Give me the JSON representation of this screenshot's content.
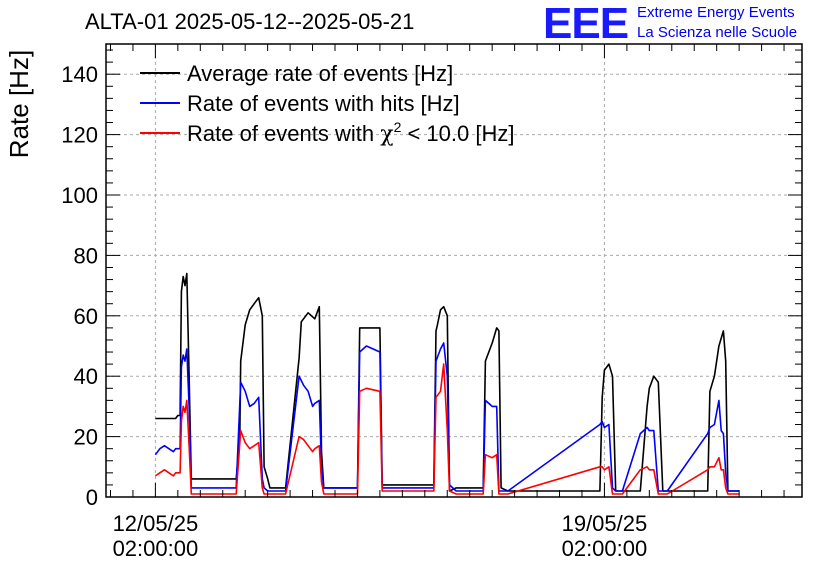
{
  "logo": {
    "letters": "EEE",
    "line1": "Extreme Energy Events",
    "line2": "La Scienza nelle Scuole"
  },
  "chart_data": {
    "type": "line",
    "title": "ALTA-01 2025-05-12--2025-05-21",
    "ylabel": "Rate [Hz]",
    "xlabel": "",
    "ylim": [
      0,
      150
    ],
    "yticks": [
      0,
      20,
      40,
      60,
      80,
      100,
      120,
      140
    ],
    "xlim_days": [
      -1.1,
      14.4
    ],
    "xticks": [
      {
        "day": 0,
        "line1": "12/05/25",
        "line2": "02:00:00"
      },
      {
        "day": 10,
        "line1": "19/05/25",
        "line2": "02:00:00"
      }
    ],
    "grid": true,
    "legend": {
      "placement": "top-left",
      "entries": [
        {
          "label": "Average rate of events [Hz]",
          "color": "#000000"
        },
        {
          "label": "Rate of events with hits [Hz]",
          "color": "#0000ff"
        },
        {
          "label_prefix": "Rate of events with ",
          "label_chi": "χ",
          "label_sup": "2",
          "label_suffix": " < 10.0 [Hz]",
          "color": "#ff0000"
        }
      ]
    },
    "series": [
      {
        "name": "Average rate of events [Hz]",
        "color": "#000000",
        "x": [
          0,
          0.45,
          0.5,
          0.55,
          0.58,
          0.62,
          0.66,
          0.7,
          0.75,
          0.8,
          0.9,
          1.0,
          1.8,
          1.88,
          1.9,
          2.0,
          2.1,
          2.25,
          2.3,
          2.38,
          2.42,
          2.5,
          2.55,
          2.9,
          3.2,
          3.25,
          3.4,
          3.55,
          3.65,
          3.7,
          3.75,
          3.9,
          4.5,
          4.55,
          4.7,
          5.0,
          5.05,
          5.1,
          6.2,
          6.25,
          6.28,
          6.35,
          6.42,
          6.5,
          6.55,
          6.7,
          7.3,
          7.35,
          7.5,
          7.6,
          7.65,
          7.7,
          7.85,
          9.9,
          9.95,
          10.0,
          10.1,
          10.18,
          10.25,
          10.4,
          10.8,
          10.95,
          11.0,
          11.1,
          11.2,
          11.3,
          11.4,
          12.3,
          12.35,
          12.45,
          12.55,
          12.65,
          12.7,
          12.75,
          13.0
        ],
        "values": [
          26,
          26,
          27,
          27,
          68,
          73,
          70,
          74,
          40,
          6,
          6,
          6,
          6,
          20,
          45,
          57,
          62,
          65,
          66,
          60,
          10,
          6,
          3,
          3,
          46,
          58,
          61,
          59,
          63,
          15,
          3,
          3,
          3,
          56,
          56,
          56,
          4,
          4,
          4,
          55,
          57,
          62,
          63,
          60,
          2,
          3,
          3,
          45,
          51,
          56,
          55,
          3,
          2,
          2,
          33,
          42,
          44,
          40,
          2,
          2,
          2,
          30,
          36,
          40,
          38,
          2,
          2,
          2,
          35,
          40,
          50,
          55,
          45,
          2,
          2
        ]
      },
      {
        "name": "Rate of events with hits [Hz]",
        "color": "#0000ff",
        "x": [
          0,
          0.1,
          0.2,
          0.3,
          0.4,
          0.45,
          0.55,
          0.58,
          0.62,
          0.66,
          0.7,
          0.75,
          0.8,
          0.9,
          1.0,
          1.8,
          1.9,
          2.0,
          2.1,
          2.2,
          2.3,
          2.38,
          2.42,
          2.5,
          2.9,
          3.2,
          3.3,
          3.4,
          3.5,
          3.55,
          3.65,
          3.7,
          3.75,
          3.9,
          4.5,
          4.55,
          4.7,
          5.0,
          5.05,
          5.1,
          6.2,
          6.25,
          6.35,
          6.42,
          6.5,
          6.55,
          6.7,
          7.3,
          7.35,
          7.5,
          7.6,
          7.65,
          7.7,
          7.85,
          9.9,
          9.95,
          10.0,
          10.1,
          10.18,
          10.25,
          10.4,
          10.8,
          10.95,
          11.0,
          11.1,
          11.2,
          11.3,
          11.4,
          12.3,
          12.35,
          12.45,
          12.55,
          12.6,
          12.65,
          12.7,
          12.75,
          13.0
        ],
        "values": [
          14,
          16,
          17,
          16,
          15,
          16,
          16,
          43,
          47,
          45,
          49,
          30,
          3,
          3,
          3,
          3,
          38,
          35,
          30,
          31,
          33,
          6,
          3,
          2,
          2,
          40,
          37,
          35,
          30,
          31,
          32,
          10,
          3,
          3,
          3,
          48,
          50,
          48,
          3,
          3,
          3,
          45,
          49,
          51,
          40,
          4,
          2,
          2,
          32,
          30,
          30,
          2,
          2,
          2,
          24,
          25,
          23,
          24,
          3,
          2,
          2,
          21,
          23,
          22,
          22,
          2,
          2,
          2,
          21,
          23,
          24,
          32,
          22,
          21,
          8,
          2,
          2
        ]
      },
      {
        "name": "Rate of events with χ2 < 10.0 [Hz]",
        "color": "#ff0000",
        "x": [
          0,
          0.1,
          0.2,
          0.3,
          0.4,
          0.45,
          0.55,
          0.58,
          0.62,
          0.66,
          0.7,
          0.75,
          0.8,
          0.9,
          1.0,
          1.8,
          1.9,
          2.0,
          2.1,
          2.2,
          2.3,
          2.38,
          2.42,
          2.5,
          2.9,
          3.2,
          3.3,
          3.4,
          3.5,
          3.55,
          3.65,
          3.7,
          3.75,
          3.9,
          4.5,
          4.55,
          4.7,
          5.0,
          5.05,
          5.1,
          6.2,
          6.25,
          6.35,
          6.42,
          6.5,
          6.55,
          6.7,
          7.3,
          7.35,
          7.5,
          7.6,
          7.65,
          7.7,
          7.85,
          9.9,
          9.95,
          10.0,
          10.1,
          10.18,
          10.25,
          10.4,
          10.8,
          10.95,
          11.0,
          11.1,
          11.2,
          11.3,
          11.4,
          12.3,
          12.35,
          12.45,
          12.55,
          12.6,
          12.65,
          12.7,
          12.75,
          13.0
        ],
        "values": [
          7,
          8,
          9,
          8,
          7,
          8,
          8,
          25,
          30,
          28,
          32,
          17,
          1,
          1,
          1,
          1,
          22,
          18,
          16,
          17,
          18,
          3,
          1,
          1,
          1,
          20,
          19,
          17,
          15,
          16,
          17,
          5,
          1,
          1,
          1,
          35,
          36,
          35,
          2,
          2,
          2,
          33,
          35,
          44,
          22,
          2,
          1,
          1,
          14,
          13,
          14,
          1,
          1,
          1,
          10,
          10,
          9,
          10,
          1,
          1,
          1,
          9,
          10,
          9,
          9,
          1,
          1,
          1,
          9,
          10,
          10,
          13,
          9,
          9,
          3,
          1,
          1
        ]
      }
    ]
  }
}
